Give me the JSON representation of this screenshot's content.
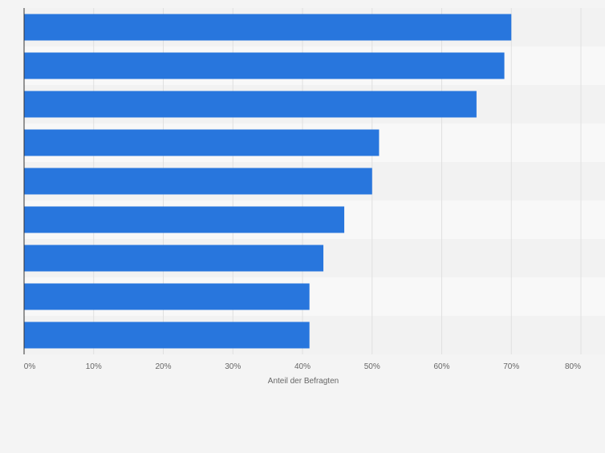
{
  "chart_data": {
    "type": "bar",
    "orientation": "horizontal",
    "categories": [
      "",
      "",
      "",
      "",
      "",
      "",
      "",
      "",
      ""
    ],
    "values": [
      70,
      69,
      65,
      51,
      50,
      46,
      43,
      41,
      41
    ],
    "title": "",
    "xlabel": "Anteil der Befragten",
    "ylabel": "",
    "xlim": [
      0,
      80
    ],
    "ticks": [
      0,
      10,
      20,
      30,
      40,
      50,
      60,
      70,
      80
    ],
    "tick_labels": [
      "0%",
      "10%",
      "20%",
      "30%",
      "40%",
      "50%",
      "60%",
      "70%",
      "80%"
    ],
    "grid": true,
    "legend": "none",
    "colors": {
      "bar": "#2876dd",
      "band_dark": "#f2f2f2",
      "band_light": "#f8f8f8",
      "grid": "#e0e0e0",
      "axis": "#333333",
      "tick_text": "#666666"
    }
  }
}
